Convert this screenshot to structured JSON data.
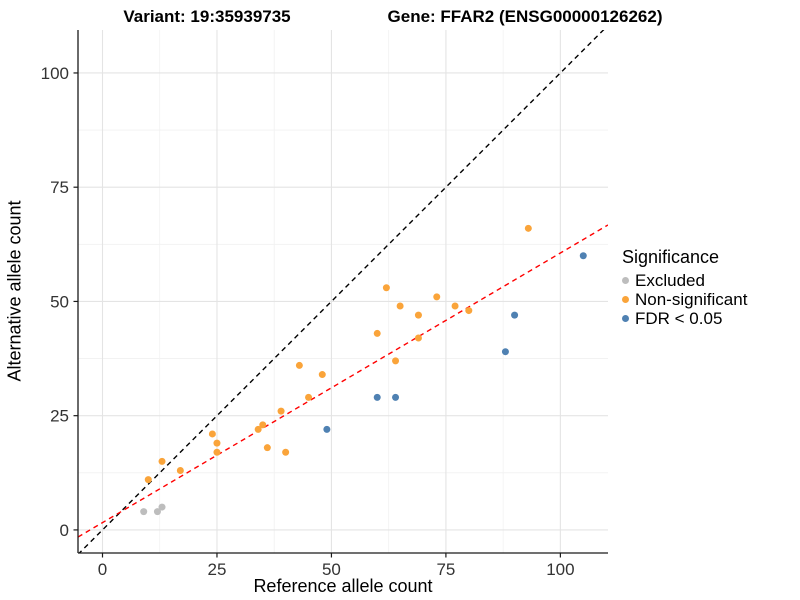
{
  "titles": {
    "variant": "Variant: 19:35939735",
    "gene": "Gene: FFAR2 (ENSG00000126262)"
  },
  "chart_data": {
    "type": "scatter",
    "xlabel": "Reference allele count",
    "ylabel": "Alternative allele count",
    "x_ticks": [
      0,
      25,
      50,
      75,
      100
    ],
    "y_ticks": [
      0,
      25,
      50,
      75,
      100
    ],
    "xlim": [
      -5.35,
      110.4
    ],
    "ylim": [
      -5.05,
      109.4
    ],
    "grid": {
      "minor_positions": [
        12.5,
        37.5,
        62.5,
        87.5
      ],
      "major_color": "#e4e4e4",
      "minor_color": "#f1f1f1"
    },
    "legend": {
      "title": "Significance",
      "position": "right"
    },
    "series": [
      {
        "name": "Excluded",
        "color": "#bdbdbd",
        "points": [
          [
            9,
            4
          ],
          [
            12,
            4
          ],
          [
            13,
            5
          ]
        ]
      },
      {
        "name": "Non-significant",
        "color": "#faa43a",
        "points": [
          [
            10,
            11
          ],
          [
            13,
            15
          ],
          [
            17,
            13
          ],
          [
            24,
            21
          ],
          [
            25,
            17
          ],
          [
            25,
            19
          ],
          [
            34,
            22
          ],
          [
            35,
            23
          ],
          [
            36,
            18
          ],
          [
            39,
            26
          ],
          [
            40,
            17
          ],
          [
            43,
            36
          ],
          [
            45,
            29
          ],
          [
            48,
            34
          ],
          [
            60,
            43
          ],
          [
            62,
            53
          ],
          [
            64,
            37
          ],
          [
            65,
            49
          ],
          [
            69,
            42
          ],
          [
            69,
            47
          ],
          [
            73,
            51
          ],
          [
            77,
            49
          ],
          [
            80,
            48
          ],
          [
            93,
            66
          ]
        ]
      },
      {
        "name": "FDR < 0.05",
        "color": "#4f81b2",
        "points": [
          [
            49,
            22
          ],
          [
            60,
            29
          ],
          [
            64,
            29
          ],
          [
            88,
            39
          ],
          [
            90,
            47
          ],
          [
            105,
            60
          ]
        ]
      }
    ],
    "lines": [
      {
        "name": "identity-line",
        "color": "#000000",
        "slope": 1,
        "intercept": 0,
        "dash": "5,4"
      },
      {
        "name": "fit-line",
        "color": "#ff0000",
        "slope": 0.59,
        "intercept": 1.6,
        "dash": "5,4"
      }
    ]
  }
}
